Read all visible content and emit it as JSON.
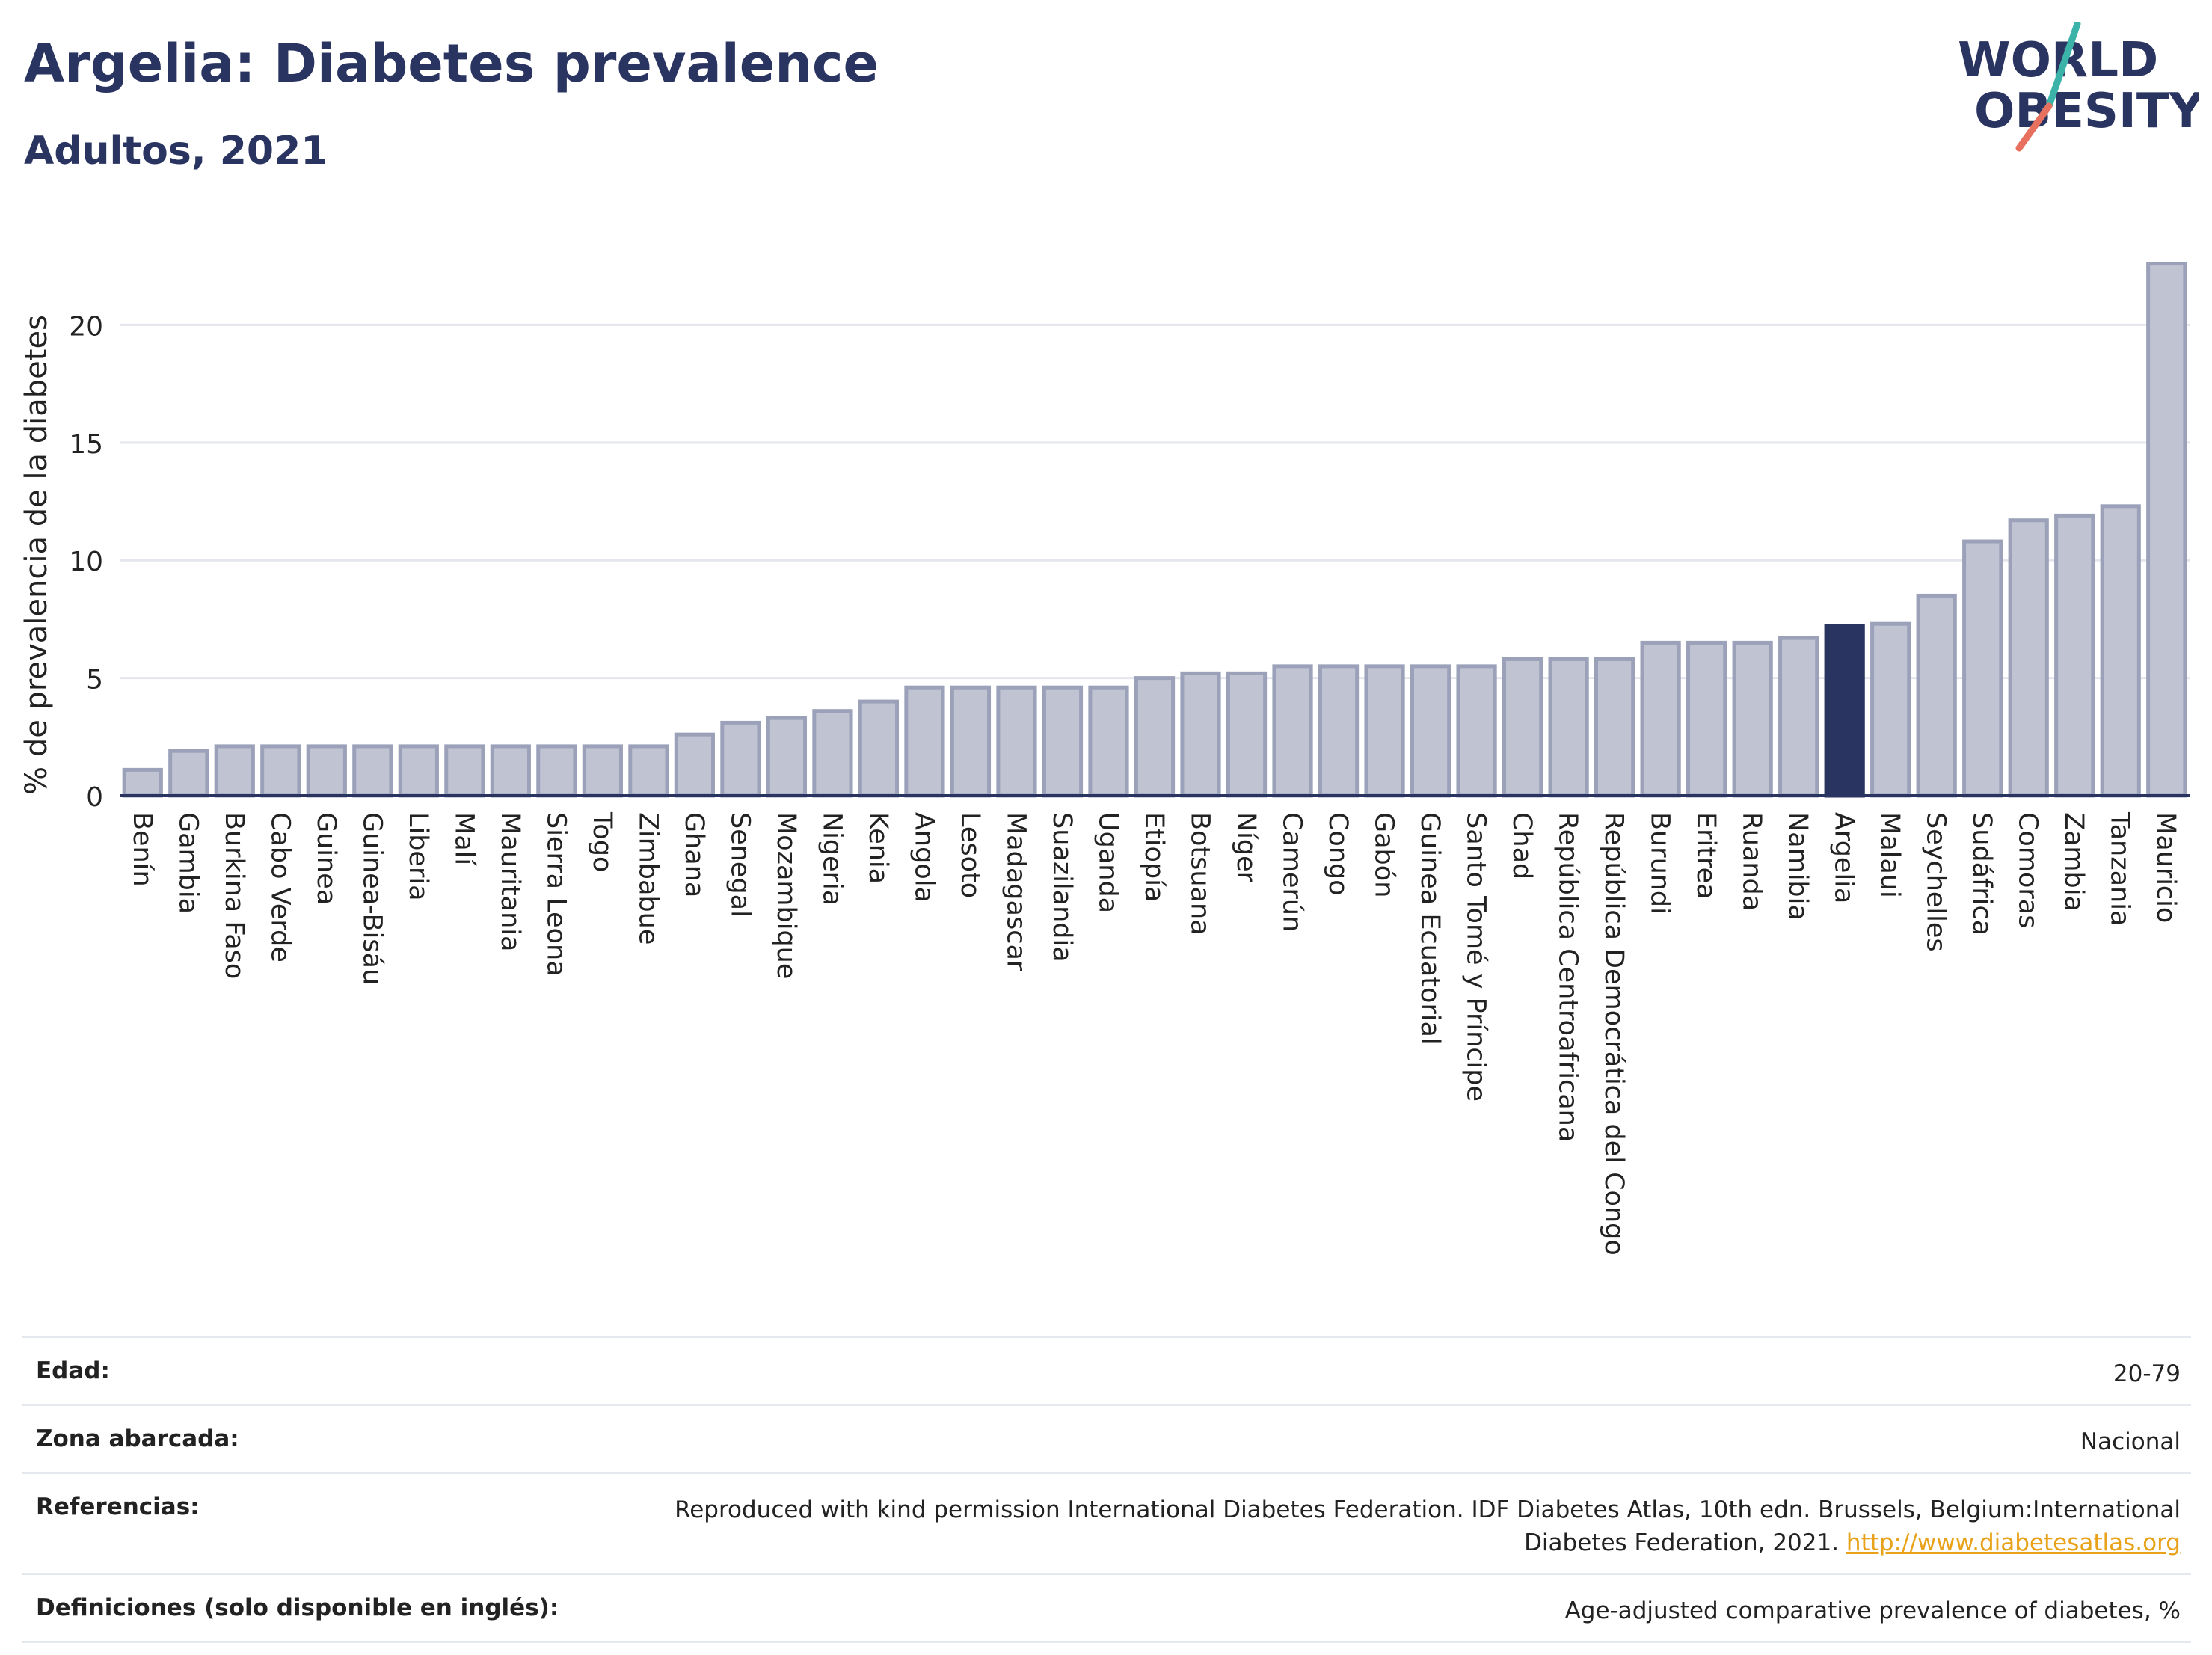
{
  "header": {
    "title": "Argelia: Diabetes prevalence",
    "subtitle": "Adultos, 2021"
  },
  "logo": {
    "line1": "WORLD",
    "line2": "OBESITY"
  },
  "colors": {
    "accent": "#2a3460",
    "bar_fill": "#bfc3d2",
    "bar_stroke": "#9ba1b8",
    "highlight": "#2a3460",
    "logo_teal": "#3bb3a9",
    "logo_coral": "#e8705f",
    "link": "#e8a21a"
  },
  "chart_data": {
    "type": "bar",
    "ylabel": "% de prevalencia de la diabetes",
    "ylim": [
      0,
      23
    ],
    "yticks": [
      0,
      5,
      10,
      15,
      20
    ],
    "grid": true,
    "highlight": "Argelia",
    "categories": [
      "Benín",
      "Gambia",
      "Burkina Faso",
      "Cabo Verde",
      "Guinea",
      "Guinea-Bisáu",
      "Liberia",
      "Malí",
      "Mauritania",
      "Sierra Leona",
      "Togo",
      "Zimbabue",
      "Ghana",
      "Senegal",
      "Mozambique",
      "Nigeria",
      "Kenia",
      "Angola",
      "Lesoto",
      "Madagascar",
      "Suazilandia",
      "Uganda",
      "Etiopía",
      "Botsuana",
      "Níger",
      "Camerún",
      "Congo",
      "Gabón",
      "Guinea Ecuatorial",
      "Santo Tomé y Príncipe",
      "Chad",
      "República Centroafricana",
      "República Democrática del Congo",
      "Burundi",
      "Eritrea",
      "Ruanda",
      "Namibia",
      "Argelia",
      "Malaui",
      "Seychelles",
      "Sudáfrica",
      "Comoras",
      "Zambia",
      "Tanzania",
      "Mauricio"
    ],
    "values": [
      1.1,
      1.9,
      2.1,
      2.1,
      2.1,
      2.1,
      2.1,
      2.1,
      2.1,
      2.1,
      2.1,
      2.1,
      2.6,
      3.1,
      3.3,
      3.6,
      4.0,
      4.6,
      4.6,
      4.6,
      4.6,
      4.6,
      5.0,
      5.2,
      5.2,
      5.5,
      5.5,
      5.5,
      5.5,
      5.5,
      5.8,
      5.8,
      5.8,
      6.5,
      6.5,
      6.5,
      6.7,
      7.2,
      7.3,
      8.5,
      10.8,
      11.7,
      11.9,
      12.3,
      22.6
    ]
  },
  "meta": {
    "age_label": "Edad:",
    "age_value": "20-79",
    "area_label": "Zona abarcada:",
    "area_value": "Nacional",
    "ref_label": "Referencias:",
    "ref_value": "Reproduced with kind permission International Diabetes Federation.  IDF Diabetes Atlas, 10th edn. Brussels, Belgium:International Diabetes Federation, 2021.",
    "ref_link": "http://www.diabetesatlas.org",
    "def_label": "Definiciones (solo disponible en inglés):",
    "def_value": "Age-adjusted comparative prevalence of diabetes, %"
  }
}
